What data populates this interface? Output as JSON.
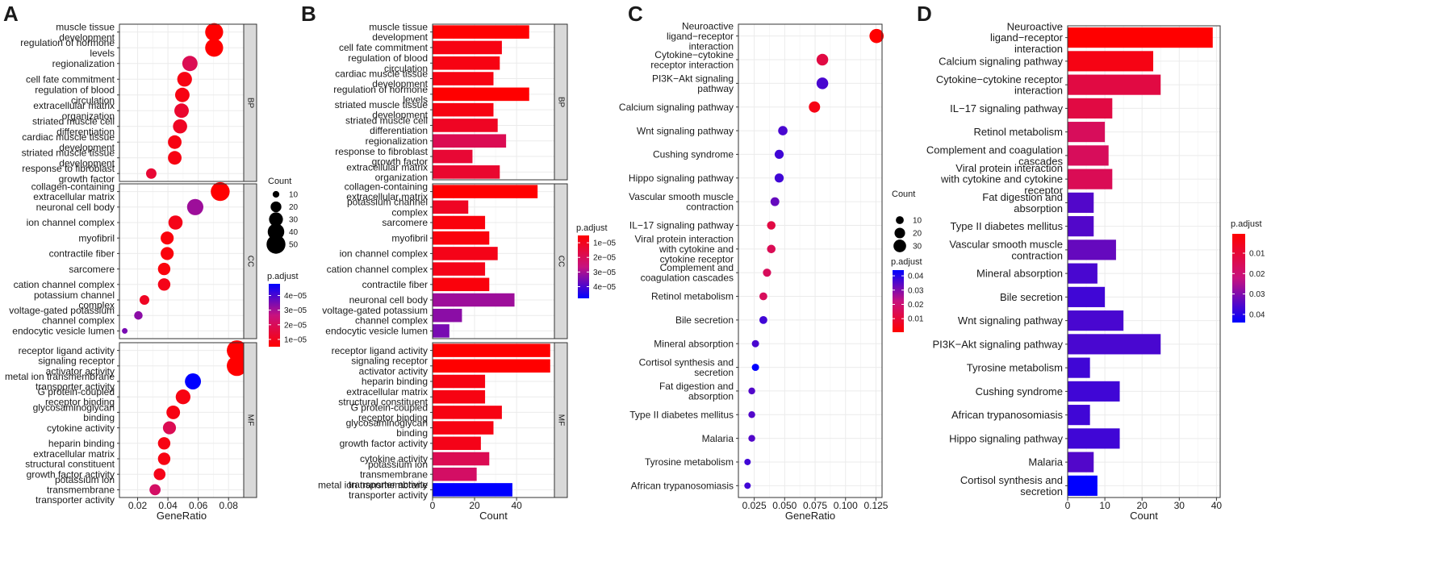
{
  "figure": {
    "panel_labels": [
      "A",
      "B",
      "C",
      "D"
    ]
  },
  "colors": {
    "low_padj": "#ff0000",
    "high_padj": "#0000ff",
    "strip": "#d9d9d9",
    "grid": "#ebebeb"
  },
  "chart_data": [
    {
      "panel": "A",
      "type": "scatter",
      "xlabel": "GeneRatio",
      "xlim": [
        0.008,
        0.09
      ],
      "xticks": [
        0.02,
        0.04,
        0.06,
        0.08
      ],
      "xtick_labels": [
        "0.02",
        "0.04",
        "0.06",
        "0.08"
      ],
      "facets": [
        {
          "name": "BP",
          "terms": [
            {
              "label": "muscle tissue development",
              "x": 0.0705,
              "count": 46,
              "padj": 5e-06
            },
            {
              "label": "regulation of hormone levels",
              "x": 0.0705,
              "count": 46,
              "padj": 5e-06
            },
            {
              "label": "regionalization",
              "x": 0.0545,
              "count": 35,
              "padj": 1.9e-05
            },
            {
              "label": "cell fate commitment",
              "x": 0.051,
              "count": 33,
              "padj": 8e-06
            },
            {
              "label": "regulation of blood circulation",
              "x": 0.0495,
              "count": 32,
              "padj": 8e-06
            },
            {
              "label": "extracellular matrix organization",
              "x": 0.049,
              "count": 32,
              "padj": 1.3e-05
            },
            {
              "label": "striated muscle cell differentiation",
              "x": 0.048,
              "count": 31,
              "padj": 1.1e-05
            },
            {
              "label": "cardiac muscle tissue development",
              "x": 0.0445,
              "count": 29,
              "padj": 8e-06
            },
            {
              "label": "striated muscle tissue development",
              "x": 0.0445,
              "count": 29,
              "padj": 8e-06
            },
            {
              "label": "response to fibroblast growth factor",
              "x": 0.029,
              "count": 19,
              "padj": 1.4e-05
            }
          ]
        },
        {
          "name": "CC",
          "terms": [
            {
              "label": "collagen-containing extracellular matrix",
              "x": 0.0745,
              "count": 50,
              "padj": 5e-06
            },
            {
              "label": "neuronal cell body",
              "x": 0.058,
              "count": 39,
              "padj": 3.1e-05
            },
            {
              "label": "ion channel complex",
              "x": 0.045,
              "count": 31,
              "padj": 9e-06
            },
            {
              "label": "myofibril",
              "x": 0.0395,
              "count": 27,
              "padj": 7e-06
            },
            {
              "label": "contractile fiber",
              "x": 0.0395,
              "count": 27,
              "padj": 7e-06
            },
            {
              "label": "sarcomere",
              "x": 0.0375,
              "count": 25,
              "padj": 7e-06
            },
            {
              "label": "cation channel complex",
              "x": 0.0375,
              "count": 25,
              "padj": 9e-06
            },
            {
              "label": "potassium channel complex",
              "x": 0.0245,
              "count": 17,
              "padj": 1.1e-05
            },
            {
              "label": "voltage-gated potassium channel complex",
              "x": 0.0205,
              "count": 14,
              "padj": 3.3e-05
            },
            {
              "label": "endocytic vesicle lumen",
              "x": 0.0115,
              "count": 8,
              "padj": 3.5e-05
            }
          ]
        },
        {
          "name": "MF",
          "terms": [
            {
              "label": "receptor ligand activity",
              "x": 0.0855,
              "count": 56,
              "padj": 5e-06
            },
            {
              "label": "signaling receptor activator activity",
              "x": 0.0855,
              "count": 56,
              "padj": 5e-06
            },
            {
              "label": "metal ion transmembrane transporter activity",
              "x": 0.0565,
              "count": 38,
              "padj": 4.8e-05
            },
            {
              "label": "G protein-coupled receptor binding",
              "x": 0.05,
              "count": 33,
              "padj": 8e-06
            },
            {
              "label": "glycosaminoglycan binding",
              "x": 0.0435,
              "count": 29,
              "padj": 8e-06
            },
            {
              "label": "cytokine activity",
              "x": 0.041,
              "count": 27,
              "padj": 1.9e-05
            },
            {
              "label": "heparin binding",
              "x": 0.0375,
              "count": 25,
              "padj": 8e-06
            },
            {
              "label": "extracellular matrix structural constituent",
              "x": 0.0375,
              "count": 25,
              "padj": 8e-06
            },
            {
              "label": "growth factor activity",
              "x": 0.0345,
              "count": 23,
              "padj": 9e-06
            },
            {
              "label": "potassium ion transmembrane transporter activity",
              "x": 0.0315,
              "count": 21,
              "padj": 2.2e-05
            }
          ]
        }
      ],
      "legend_size": {
        "title": "Count",
        "values": [
          10,
          20,
          30,
          40,
          50
        ],
        "labels": [
          "10",
          "20",
          "30",
          "40",
          "50"
        ]
      },
      "legend_color": {
        "title": "p.adjust",
        "range": [
          5e-06,
          4.8e-05
        ],
        "ticks": [
          4e-05,
          3e-05,
          2e-05,
          1e-05
        ],
        "labels": [
          "4e−05",
          "3e−05",
          "2e−05",
          "1e−05"
        ]
      }
    },
    {
      "panel": "B",
      "type": "bar",
      "xlabel": "Count",
      "xlim": [
        0,
        58
      ],
      "xticks": [
        0,
        20,
        40
      ],
      "xtick_labels": [
        "0",
        "20",
        "40"
      ],
      "facets": [
        {
          "name": "BP",
          "terms": [
            {
              "label": "muscle tissue development",
              "count": 46,
              "padj": 5e-06
            },
            {
              "label": "cell fate commitment",
              "count": 33,
              "padj": 8e-06
            },
            {
              "label": "regulation of blood circulation",
              "count": 32,
              "padj": 8e-06
            },
            {
              "label": "cardiac muscle tissue development",
              "count": 29,
              "padj": 8e-06
            },
            {
              "label": "regulation of hormone levels",
              "count": 46,
              "padj": 5e-06
            },
            {
              "label": "striated muscle tissue development",
              "count": 29,
              "padj": 8e-06
            },
            {
              "label": "striated muscle cell differentiation",
              "count": 31,
              "padj": 1.1e-05
            },
            {
              "label": "regionalization",
              "count": 35,
              "padj": 1.9e-05
            },
            {
              "label": "response to fibroblast growth factor",
              "count": 19,
              "padj": 1.4e-05
            },
            {
              "label": "extracellular matrix organization",
              "count": 32,
              "padj": 1.3e-05
            }
          ]
        },
        {
          "name": "CC",
          "terms": [
            {
              "label": "collagen-containing extracellular matrix",
              "count": 50,
              "padj": 5e-06
            },
            {
              "label": "potassium channel complex",
              "count": 17,
              "padj": 1.1e-05
            },
            {
              "label": "sarcomere",
              "count": 25,
              "padj": 7e-06
            },
            {
              "label": "myofibril",
              "count": 27,
              "padj": 7e-06
            },
            {
              "label": "ion channel complex",
              "count": 31,
              "padj": 9e-06
            },
            {
              "label": "cation channel complex",
              "count": 25,
              "padj": 9e-06
            },
            {
              "label": "contractile fiber",
              "count": 27,
              "padj": 7e-06
            },
            {
              "label": "neuronal cell body",
              "count": 39,
              "padj": 3.1e-05
            },
            {
              "label": "voltage-gated potassium channel complex",
              "count": 14,
              "padj": 3.3e-05
            },
            {
              "label": "endocytic vesicle lumen",
              "count": 8,
              "padj": 3.5e-05
            }
          ]
        },
        {
          "name": "MF",
          "terms": [
            {
              "label": "receptor ligand activity",
              "count": 56,
              "padj": 5e-06
            },
            {
              "label": "signaling receptor activator activity",
              "count": 56,
              "padj": 5e-06
            },
            {
              "label": "heparin binding",
              "count": 25,
              "padj": 8e-06
            },
            {
              "label": "extracellular matrix structural constituent",
              "count": 25,
              "padj": 8e-06
            },
            {
              "label": "G protein-coupled receptor binding",
              "count": 33,
              "padj": 8e-06
            },
            {
              "label": "glycosaminoglycan binding",
              "count": 29,
              "padj": 8e-06
            },
            {
              "label": "growth factor activity",
              "count": 23,
              "padj": 9e-06
            },
            {
              "label": "cytokine activity",
              "count": 27,
              "padj": 1.9e-05
            },
            {
              "label": "potassium ion transmembrane transporter activity",
              "count": 21,
              "padj": 2.2e-05
            },
            {
              "label": "metal ion transmembrane transporter activity",
              "count": 38,
              "padj": 4.8e-05
            }
          ]
        }
      ],
      "legend_color": {
        "title": "p.adjust",
        "range": [
          5e-06,
          4.8e-05
        ],
        "ticks": [
          1e-05,
          2e-05,
          3e-05,
          4e-05
        ],
        "labels": [
          "1e−05",
          "2e−05",
          "3e−05",
          "4e−05"
        ]
      }
    },
    {
      "panel": "C",
      "type": "scatter",
      "xlabel": "GeneRatio",
      "xlim": [
        0.012,
        0.13
      ],
      "xticks": [
        0.025,
        0.05,
        0.075,
        0.1,
        0.125
      ],
      "xtick_labels": [
        "0.025",
        "0.050",
        "0.075",
        "0.100",
        "0.125"
      ],
      "facets": [
        {
          "name": "",
          "terms": [
            {
              "label": "Neuroactive ligand−receptor interaction",
              "x": 0.1255,
              "count": 39,
              "padj": 0.0005
            },
            {
              "label": "Cytokine−cytokine receptor interaction",
              "x": 0.081,
              "count": 25,
              "padj": 0.012
            },
            {
              "label": "PI3K−Akt signaling pathway",
              "x": 0.081,
              "count": 25,
              "padj": 0.036
            },
            {
              "label": "Calcium signaling pathway",
              "x": 0.0745,
              "count": 23,
              "padj": 0.004
            },
            {
              "label": "Wnt signaling pathway",
              "x": 0.0485,
              "count": 15,
              "padj": 0.036
            },
            {
              "label": "Cushing syndrome",
              "x": 0.0455,
              "count": 14,
              "padj": 0.037
            },
            {
              "label": "Hippo signaling pathway",
              "x": 0.0455,
              "count": 14,
              "padj": 0.037
            },
            {
              "label": "Vascular smooth muscle contraction",
              "x": 0.042,
              "count": 13,
              "padj": 0.033
            },
            {
              "label": "IL−17 signaling pathway",
              "x": 0.039,
              "count": 12,
              "padj": 0.012
            },
            {
              "label": "Viral protein interaction with cytokine and cytokine receptor",
              "x": 0.039,
              "count": 12,
              "padj": 0.015
            },
            {
              "label": "Complement and coagulation cascades",
              "x": 0.0355,
              "count": 11,
              "padj": 0.016
            },
            {
              "label": "Retinol metabolism",
              "x": 0.0325,
              "count": 10,
              "padj": 0.016
            },
            {
              "label": "Bile secretion",
              "x": 0.0325,
              "count": 10,
              "padj": 0.037
            },
            {
              "label": "Mineral absorption",
              "x": 0.026,
              "count": 8,
              "padj": 0.036
            },
            {
              "label": "Cortisol synthesis and secretion",
              "x": 0.026,
              "count": 8,
              "padj": 0.044
            },
            {
              "label": "Fat digestion and absorption",
              "x": 0.023,
              "count": 7,
              "padj": 0.035
            },
            {
              "label": "Type II diabetes mellitus",
              "x": 0.023,
              "count": 7,
              "padj": 0.035
            },
            {
              "label": "Malaria",
              "x": 0.023,
              "count": 7,
              "padj": 0.035
            },
            {
              "label": "Tyrosine metabolism",
              "x": 0.0195,
              "count": 6,
              "padj": 0.037
            },
            {
              "label": "African trypanosomiasis",
              "x": 0.0195,
              "count": 6,
              "padj": 0.037
            }
          ]
        }
      ],
      "legend_size": {
        "title": "Count",
        "values": [
          10,
          20,
          30
        ],
        "labels": [
          "10",
          "20",
          "30"
        ]
      },
      "legend_color": {
        "title": "p.adjust",
        "range": [
          0.0005,
          0.044
        ],
        "ticks": [
          0.04,
          0.03,
          0.02,
          0.01
        ],
        "labels": [
          "0.04",
          "0.03",
          "0.02",
          "0.01"
        ]
      }
    },
    {
      "panel": "D",
      "type": "bar",
      "xlabel": "Count",
      "xlim": [
        0,
        41
      ],
      "xticks": [
        0,
        10,
        20,
        30,
        40
      ],
      "xtick_labels": [
        "0",
        "10",
        "20",
        "30",
        "40"
      ],
      "facets": [
        {
          "name": "",
          "terms": [
            {
              "label": "Neuroactive ligand−receptor interaction",
              "count": 39,
              "padj": 0.0005
            },
            {
              "label": "Calcium signaling pathway",
              "count": 23,
              "padj": 0.004
            },
            {
              "label": "Cytokine−cytokine receptor interaction",
              "count": 25,
              "padj": 0.012
            },
            {
              "label": "IL−17 signaling pathway",
              "count": 12,
              "padj": 0.012
            },
            {
              "label": "Retinol metabolism",
              "count": 10,
              "padj": 0.016
            },
            {
              "label": "Complement and coagulation cascades",
              "count": 11,
              "padj": 0.016
            },
            {
              "label": "Viral protein interaction with cytokine and cytokine receptor",
              "count": 12,
              "padj": 0.015
            },
            {
              "label": "Fat digestion and absorption",
              "count": 7,
              "padj": 0.035
            },
            {
              "label": "Type II diabetes mellitus",
              "count": 7,
              "padj": 0.035
            },
            {
              "label": "Vascular smooth muscle contraction",
              "count": 13,
              "padj": 0.033
            },
            {
              "label": "Mineral absorption",
              "count": 8,
              "padj": 0.036
            },
            {
              "label": "Bile secretion",
              "count": 10,
              "padj": 0.037
            },
            {
              "label": "Wnt signaling pathway",
              "count": 15,
              "padj": 0.036
            },
            {
              "label": "PI3K−Akt signaling pathway",
              "count": 25,
              "padj": 0.036
            },
            {
              "label": "Tyrosine metabolism",
              "count": 6,
              "padj": 0.037
            },
            {
              "label": "Cushing syndrome",
              "count": 14,
              "padj": 0.037
            },
            {
              "label": "African trypanosomiasis",
              "count": 6,
              "padj": 0.037
            },
            {
              "label": "Hippo signaling pathway",
              "count": 14,
              "padj": 0.037
            },
            {
              "label": "Malaria",
              "count": 7,
              "padj": 0.035
            },
            {
              "label": "Cortisol synthesis and secretion",
              "count": 8,
              "padj": 0.044
            }
          ]
        }
      ],
      "legend_color": {
        "title": "p.adjust",
        "range": [
          0.0005,
          0.044
        ],
        "ticks": [
          0.01,
          0.02,
          0.03,
          0.04
        ],
        "labels": [
          "0.01",
          "0.02",
          "0.03",
          "0.04"
        ]
      }
    }
  ]
}
